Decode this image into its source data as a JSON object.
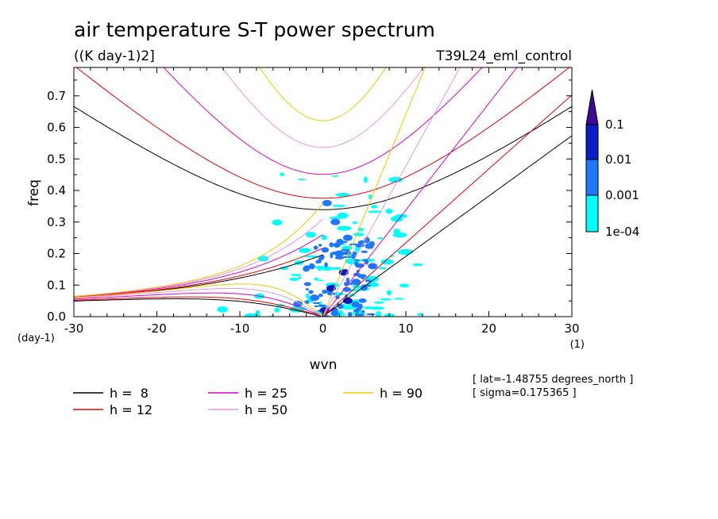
{
  "chart_data": {
    "type": "heatmap",
    "title": "air temperature S-T power spectrum",
    "units": "((K day-1)2]",
    "run_label": "T39L24_eml_control",
    "xlabel": "wvn",
    "ylabel": "freq",
    "x_unit": "(1)",
    "y_unit": "(day-1)",
    "xlim": [
      -30,
      30
    ],
    "ylim": [
      0,
      0.79
    ],
    "x_ticks": [
      "-30",
      "-20",
      "-10",
      "0",
      "10",
      "20",
      "30"
    ],
    "y_ticks": [
      "0.0",
      "0.1",
      "0.2",
      "0.3",
      "0.4",
      "0.5",
      "0.6",
      "0.7"
    ],
    "colorbar": {
      "levels": [
        "1e-04",
        "0.001",
        "0.01",
        "0.1"
      ],
      "colors": [
        "#00ffff",
        "#1e78ff",
        "#0a1ec8",
        "#3c0a96"
      ]
    },
    "contour_blobs": [
      {
        "x": 0.5,
        "y": 0.36,
        "level": 1
      },
      {
        "x": 1.5,
        "y": 0.3,
        "level": 1
      },
      {
        "x": 2.5,
        "y": 0.14,
        "level": 2
      },
      {
        "x": 1.0,
        "y": 0.09,
        "level": 2
      },
      {
        "x": 3.0,
        "y": 0.05,
        "level": 2
      },
      {
        "x": 0.2,
        "y": 0.02,
        "level": 2
      },
      {
        "x": 2.0,
        "y": 0.2,
        "level": 1
      },
      {
        "x": -1.0,
        "y": 0.06,
        "level": 1
      },
      {
        "x": 4.0,
        "y": 0.11,
        "level": 1
      },
      {
        "x": 3.0,
        "y": 0.25,
        "level": 1
      },
      {
        "x": -3.0,
        "y": 0.04,
        "level": 1
      },
      {
        "x": 6.0,
        "y": 0.16,
        "level": 1
      }
    ],
    "series": [
      {
        "name": "h =  8",
        "equivalent_depth_m": 8,
        "color": "#000000"
      },
      {
        "name": "h = 12",
        "equivalent_depth_m": 12,
        "color": "#e60000"
      },
      {
        "name": "h = 25",
        "equivalent_depth_m": 25,
        "color": "#dc00c8"
      },
      {
        "name": "h = 50",
        "equivalent_depth_m": 50,
        "color": "#e696e6"
      },
      {
        "name": "h = 90",
        "equivalent_depth_m": 90,
        "color": "#f0c800"
      }
    ]
  },
  "annotations": {
    "lat": "[ lat=-1.48755 degrees_north ]",
    "sigma": "[ sigma=0.175365 ]"
  }
}
